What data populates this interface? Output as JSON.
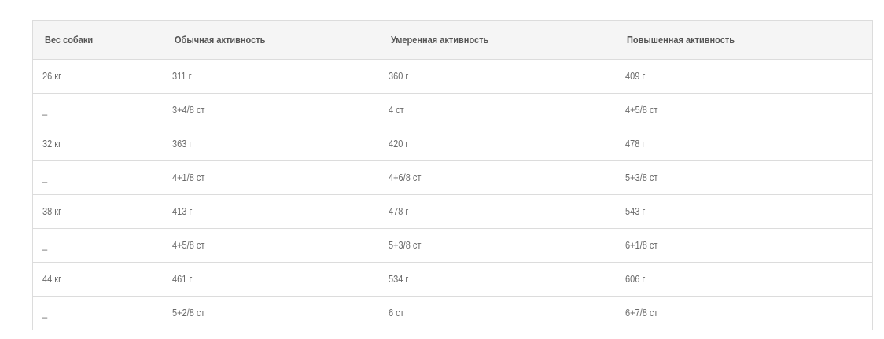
{
  "table": {
    "headers": [
      "Вес собаки",
      "Обычная активность",
      "Умеренная активность",
      "Повышенная активность"
    ],
    "rows": [
      [
        "26 кг",
        "311 г",
        "360 г",
        "409 г"
      ],
      [
        "_",
        "3+4/8 ст",
        "4 ст",
        "4+5/8 ст"
      ],
      [
        "32 кг",
        "363 г",
        "420 г",
        "478 г"
      ],
      [
        "_",
        "4+1/8 ст",
        "4+6/8 ст",
        "5+3/8 ст"
      ],
      [
        "38 кг",
        "413 г",
        "478 г",
        "543 г"
      ],
      [
        "_",
        "4+5/8 ст",
        "5+3/8 ст",
        "6+1/8 ст"
      ],
      [
        "44 кг",
        "461 г",
        "534 г",
        "606 г"
      ],
      [
        "_",
        "5+2/8 ст",
        "6 ст",
        "6+7/8 ст"
      ]
    ]
  }
}
